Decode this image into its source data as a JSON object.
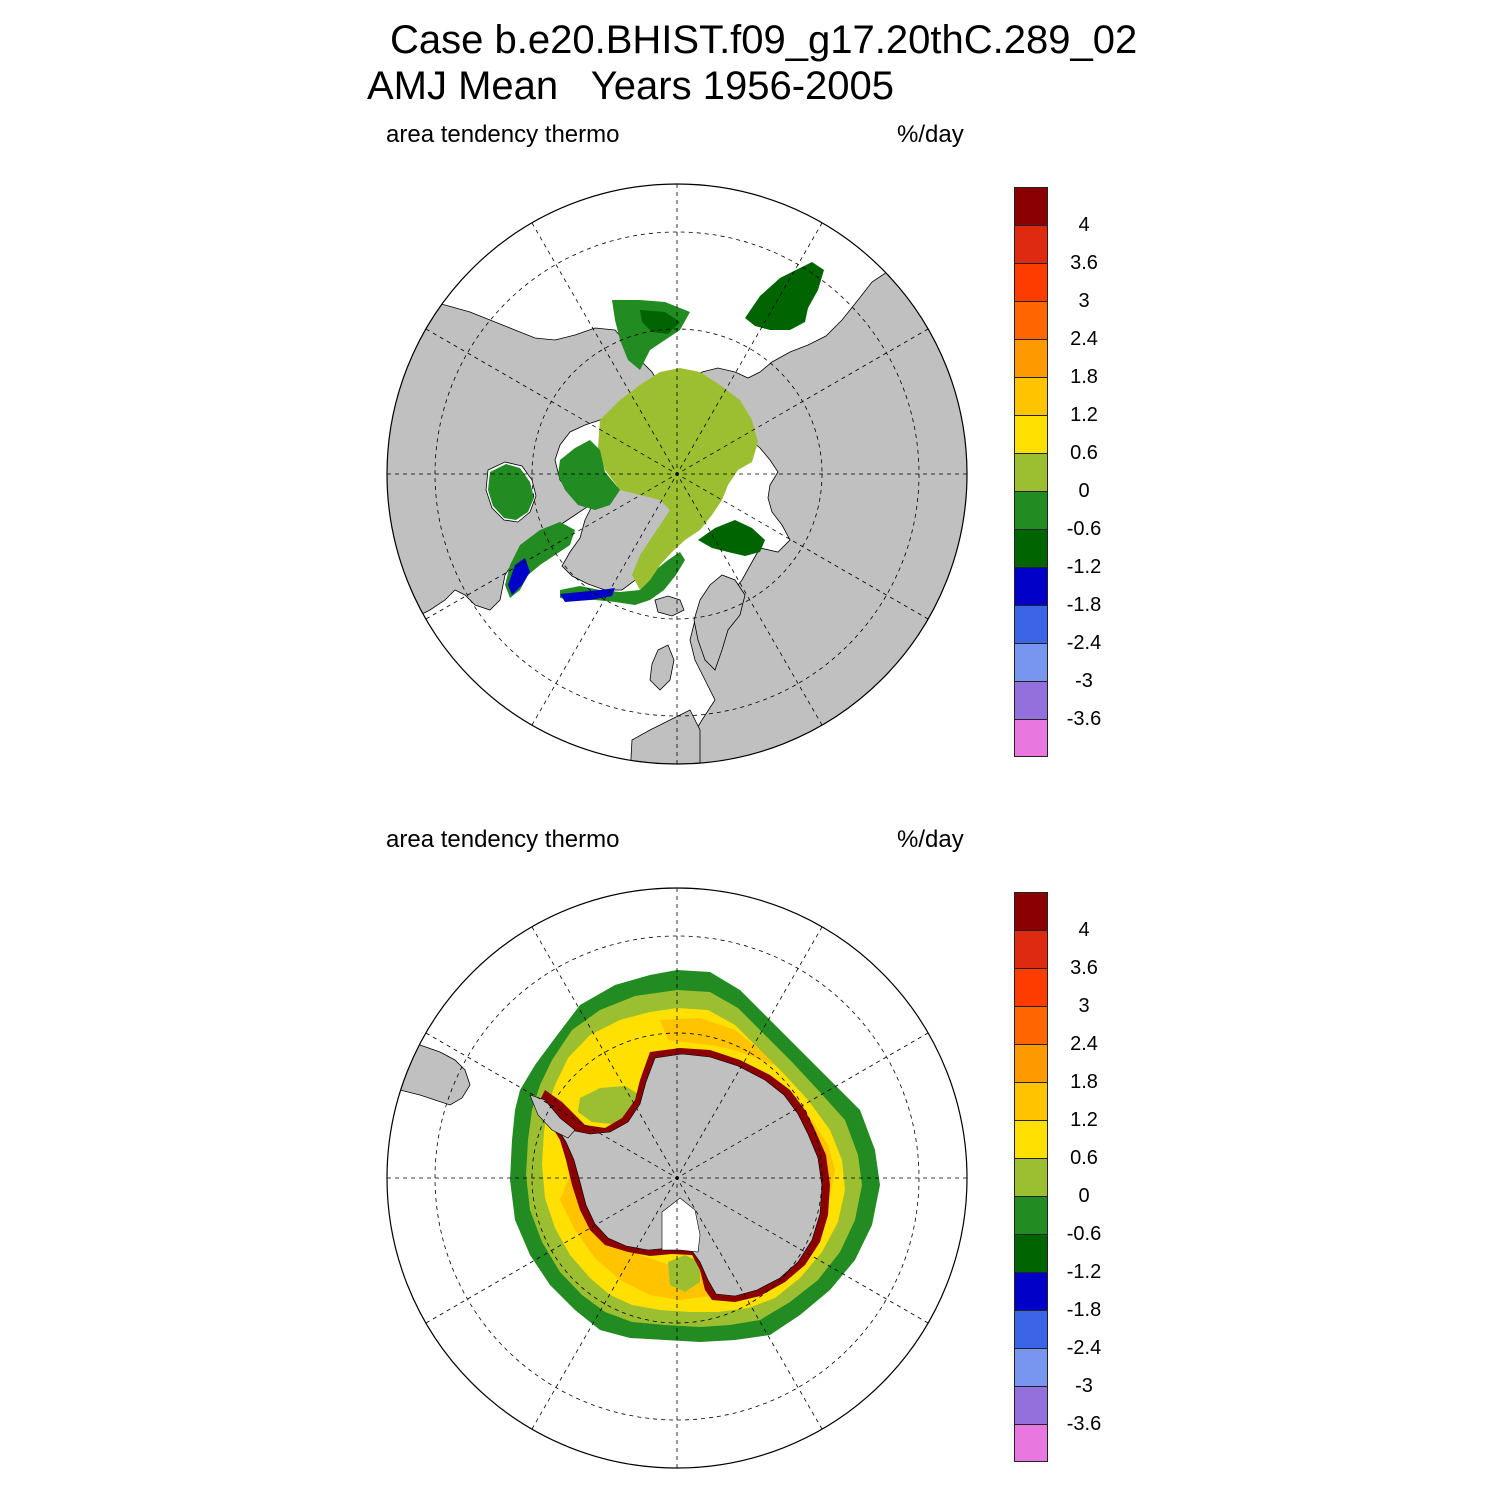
{
  "title": {
    "line1": "Case b.e20.BHIST.f09_g17.20thC.289_02",
    "line2": "AMJ Mean   Years 1956-2005"
  },
  "panels": [
    {
      "name": "north",
      "left_label": "area tendency thermo",
      "right_label": "%/day"
    },
    {
      "name": "south",
      "left_label": "area tendency thermo",
      "right_label": "%/day"
    }
  ],
  "colorbar": {
    "colors": [
      "#8b0000",
      "#dd2a10",
      "#ff3c00",
      "#ff6600",
      "#ff9900",
      "#ffc300",
      "#ffe000",
      "#9bbf31",
      "#228b22",
      "#006400",
      "#0000c8",
      "#3c64e6",
      "#7896f0",
      "#9370db",
      "#e878e0"
    ],
    "labels": [
      "4",
      "3.6",
      "3",
      "2.4",
      "1.8",
      "1.2",
      "0.6",
      "0",
      "-0.6",
      "-1.2",
      "-1.8",
      "-2.4",
      "-3",
      "-3.6"
    ]
  },
  "colors": {
    "land": "#c0c0c0",
    "ocean": "#ffffff"
  }
}
